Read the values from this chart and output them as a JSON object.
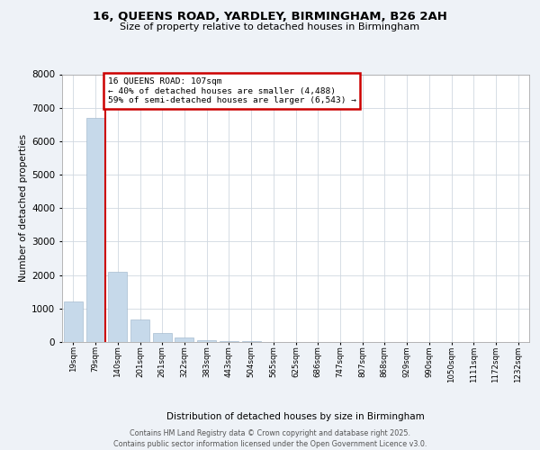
{
  "title_line1": "16, QUEENS ROAD, YARDLEY, BIRMINGHAM, B26 2AH",
  "title_line2": "Size of property relative to detached houses in Birmingham",
  "xlabel": "Distribution of detached houses by size in Birmingham",
  "ylabel": "Number of detached properties",
  "categories": [
    "19sqm",
    "79sqm",
    "140sqm",
    "201sqm",
    "261sqm",
    "322sqm",
    "383sqm",
    "443sqm",
    "504sqm",
    "565sqm",
    "625sqm",
    "686sqm",
    "747sqm",
    "807sqm",
    "868sqm",
    "929sqm",
    "990sqm",
    "1050sqm",
    "1111sqm",
    "1172sqm",
    "1232sqm"
  ],
  "values": [
    1200,
    6700,
    2100,
    680,
    270,
    130,
    55,
    25,
    15,
    8,
    5,
    3,
    2,
    2,
    2,
    1,
    1,
    1,
    0,
    0,
    0
  ],
  "bar_color": "#c6d9ea",
  "bar_edge_color": "#9ab3c8",
  "property_line_color": "#cc0000",
  "property_line_x": 1.45,
  "annotation_label": "16 QUEENS ROAD: 107sqm",
  "annotation_line1": "← 40% of detached houses are smaller (4,488)",
  "annotation_line2": "59% of semi-detached houses are larger (6,543) →",
  "annotation_box_color": "#ffffff",
  "annotation_box_edge": "#cc0000",
  "ylim": [
    0,
    8000
  ],
  "yticks": [
    0,
    1000,
    2000,
    3000,
    4000,
    5000,
    6000,
    7000,
    8000
  ],
  "footer_line1": "Contains HM Land Registry data © Crown copyright and database right 2025.",
  "footer_line2": "Contains public sector information licensed under the Open Government Licence v3.0.",
  "background_color": "#eef2f7",
  "plot_bg_color": "#ffffff",
  "grid_color": "#d0d8e0"
}
